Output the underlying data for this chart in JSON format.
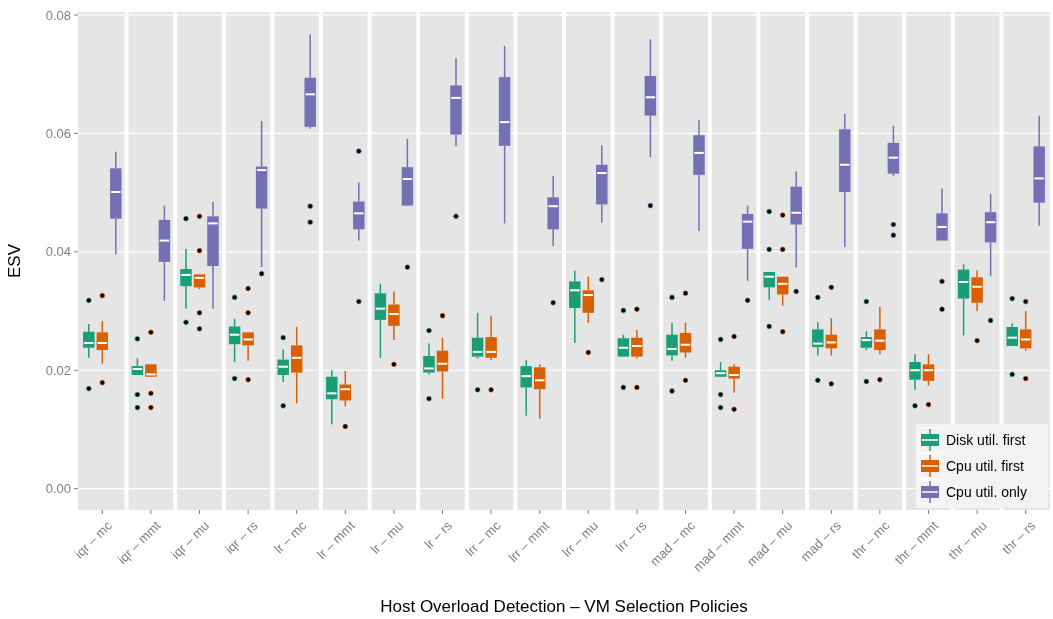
{
  "chart_data": {
    "type": "box",
    "xlabel": "Host Overload Detection – VM Selection Policies",
    "ylabel": "ESV",
    "categories": [
      "iqr – mc",
      "iqr – mmt",
      "iqr – mu",
      "iqr – rs",
      "lr – mc",
      "lr – mmt",
      "lr – mu",
      "lr – rs",
      "lrr – mc",
      "lrr – mmt",
      "lrr – mu",
      "lrr – rs",
      "mad – mc",
      "mad – mmt",
      "mad – mu",
      "mad – rs",
      "thr – mc",
      "thr – mmt",
      "thr – mu",
      "thr – rs"
    ],
    "ylim": [
      -0.0036,
      0.0805
    ],
    "yticks": [
      {
        "value": 0,
        "label": "0.00"
      },
      {
        "value": 0.02,
        "label": "0.02"
      },
      {
        "value": 0.04,
        "label": "0.04"
      },
      {
        "value": 0.06,
        "label": "0.06"
      },
      {
        "value": 0.08,
        "label": "0.08"
      }
    ],
    "grid": "y",
    "legend": "bottom right",
    "series": [
      {
        "name": "Disk util. first",
        "color": "#1b9e77",
        "boxes": [
          {
            "low": 0.0221,
            "q1": 0.0238,
            "median": 0.0246,
            "q3": 0.0265,
            "high": 0.0278,
            "outliers": [
              0.0318,
              0.0169
            ]
          },
          {
            "low": 0.0192,
            "q1": 0.0192,
            "median": 0.0202,
            "q3": 0.0207,
            "high": 0.022,
            "outliers": [
              0.0253,
              0.0159,
              0.0137
            ]
          },
          {
            "low": 0.0304,
            "q1": 0.0342,
            "median": 0.0361,
            "q3": 0.0371,
            "high": 0.0405,
            "outliers": [
              0.0456,
              0.0281
            ]
          },
          {
            "low": 0.0214,
            "q1": 0.0244,
            "median": 0.026,
            "q3": 0.0274,
            "high": 0.0287,
            "outliers": [
              0.0323,
              0.0186
            ]
          },
          {
            "low": 0.018,
            "q1": 0.0192,
            "median": 0.0206,
            "q3": 0.0218,
            "high": 0.0235,
            "outliers": [
              0.0255,
              0.014
            ]
          },
          {
            "low": 0.0109,
            "q1": 0.0151,
            "median": 0.0161,
            "q3": 0.0189,
            "high": 0.02
          },
          {
            "low": 0.0221,
            "q1": 0.0285,
            "median": 0.0304,
            "q3": 0.033,
            "high": 0.0346
          },
          {
            "low": 0.0193,
            "q1": 0.0196,
            "median": 0.0203,
            "q3": 0.0224,
            "high": 0.0245,
            "outliers": [
              0.0267,
              0.0152
            ]
          },
          {
            "low": 0.022,
            "q1": 0.0223,
            "median": 0.0231,
            "q3": 0.0255,
            "high": 0.0297,
            "outliers": [
              0.0167
            ]
          },
          {
            "low": 0.0123,
            "q1": 0.0171,
            "median": 0.019,
            "q3": 0.0207,
            "high": 0.0217
          },
          {
            "low": 0.0246,
            "q1": 0.0305,
            "median": 0.0335,
            "q3": 0.035,
            "high": 0.0368
          },
          {
            "low": 0.0223,
            "q1": 0.0223,
            "median": 0.0238,
            "q3": 0.0254,
            "high": 0.026,
            "outliers": [
              0.0301,
              0.0171
            ]
          },
          {
            "low": 0.0216,
            "q1": 0.0225,
            "median": 0.0236,
            "q3": 0.026,
            "high": 0.028,
            "outliers": [
              0.0323,
              0.0165
            ]
          },
          {
            "low": 0.0189,
            "q1": 0.0189,
            "median": 0.0195,
            "q3": 0.02,
            "high": 0.0214,
            "outliers": [
              0.0252,
              0.0159,
              0.0137
            ]
          },
          {
            "low": 0.0319,
            "q1": 0.034,
            "median": 0.0358,
            "q3": 0.0366,
            "high": 0.0366,
            "outliers": [
              0.0468,
              0.0404,
              0.0274
            ]
          },
          {
            "low": 0.0225,
            "q1": 0.0239,
            "median": 0.0245,
            "q3": 0.0269,
            "high": 0.0281,
            "outliers": [
              0.0323,
              0.0183
            ]
          },
          {
            "low": 0.0234,
            "q1": 0.0238,
            "median": 0.0251,
            "q3": 0.0256,
            "high": 0.0266,
            "outliers": [
              0.0316,
              0.0181
            ]
          },
          {
            "low": 0.0167,
            "q1": 0.0184,
            "median": 0.02,
            "q3": 0.0214,
            "high": 0.0227,
            "outliers": [
              0.014
            ]
          },
          {
            "low": 0.0259,
            "q1": 0.0321,
            "median": 0.0349,
            "q3": 0.037,
            "high": 0.0379
          },
          {
            "low": 0.0241,
            "q1": 0.0241,
            "median": 0.0255,
            "q3": 0.0273,
            "high": 0.0279,
            "outliers": [
              0.0321,
              0.0193
            ]
          }
        ]
      },
      {
        "name": "Cpu util. first",
        "color": "#d95f02",
        "boxes": [
          {
            "low": 0.0211,
            "q1": 0.0234,
            "median": 0.0246,
            "q3": 0.0264,
            "high": 0.0283,
            "outliers": [
              0.0326,
              0.0179
            ]
          },
          {
            "low": 0.0189,
            "q1": 0.0189,
            "median": 0.0193,
            "q3": 0.021,
            "high": 0.021,
            "outliers": [
              0.0264,
              0.0161,
              0.0137
            ]
          },
          {
            "low": 0.0337,
            "q1": 0.034,
            "median": 0.0356,
            "q3": 0.0362,
            "high": 0.0362,
            "outliers": [
              0.046,
              0.0402,
              0.0297,
              0.027
            ]
          },
          {
            "low": 0.0216,
            "q1": 0.0242,
            "median": 0.0252,
            "q3": 0.0264,
            "high": 0.0264,
            "outliers": [
              0.0338,
              0.0297,
              0.0184
            ]
          },
          {
            "low": 0.0144,
            "q1": 0.0196,
            "median": 0.0221,
            "q3": 0.0242,
            "high": 0.0273
          },
          {
            "low": 0.0139,
            "q1": 0.0149,
            "median": 0.0168,
            "q3": 0.0176,
            "high": 0.0199,
            "outliers": [
              0.0105
            ]
          },
          {
            "low": 0.0251,
            "q1": 0.0275,
            "median": 0.0295,
            "q3": 0.0311,
            "high": 0.0333,
            "outliers": [
              0.021
            ]
          },
          {
            "low": 0.0152,
            "q1": 0.0198,
            "median": 0.0211,
            "q3": 0.0233,
            "high": 0.0255,
            "outliers": [
              0.0292
            ]
          },
          {
            "low": 0.0217,
            "q1": 0.0221,
            "median": 0.0231,
            "q3": 0.0256,
            "high": 0.0292,
            "outliers": [
              0.0167
            ]
          },
          {
            "low": 0.0118,
            "q1": 0.0168,
            "median": 0.0183,
            "q3": 0.0205,
            "high": 0.021
          },
          {
            "low": 0.028,
            "q1": 0.0297,
            "median": 0.0327,
            "q3": 0.0335,
            "high": 0.0358,
            "outliers": [
              0.023
            ]
          },
          {
            "low": 0.022,
            "q1": 0.0223,
            "median": 0.0241,
            "q3": 0.0255,
            "high": 0.0268,
            "outliers": [
              0.0303,
              0.0171
            ]
          },
          {
            "low": 0.0221,
            "q1": 0.023,
            "median": 0.0243,
            "q3": 0.0263,
            "high": 0.028,
            "outliers": [
              0.033,
              0.0183
            ]
          },
          {
            "low": 0.0162,
            "q1": 0.0186,
            "median": 0.0192,
            "q3": 0.0206,
            "high": 0.021,
            "outliers": [
              0.0257,
              0.0134
            ]
          },
          {
            "low": 0.0309,
            "q1": 0.0328,
            "median": 0.0346,
            "q3": 0.0358,
            "high": 0.0358,
            "outliers": [
              0.0462,
              0.0404,
              0.0265
            ]
          },
          {
            "low": 0.0225,
            "q1": 0.0237,
            "median": 0.0247,
            "q3": 0.026,
            "high": 0.0288,
            "outliers": [
              0.034,
              0.0177
            ]
          },
          {
            "low": 0.0227,
            "q1": 0.0234,
            "median": 0.025,
            "q3": 0.0269,
            "high": 0.0307,
            "outliers": [
              0.0184
            ]
          },
          {
            "low": 0.0174,
            "q1": 0.0182,
            "median": 0.02,
            "q3": 0.021,
            "high": 0.0227,
            "outliers": [
              0.0142
            ]
          },
          {
            "low": 0.03,
            "q1": 0.0314,
            "median": 0.0341,
            "q3": 0.0357,
            "high": 0.0369,
            "outliers": [
              0.025
            ]
          },
          {
            "low": 0.0233,
            "q1": 0.0237,
            "median": 0.0252,
            "q3": 0.0269,
            "high": 0.03,
            "outliers": [
              0.0316,
              0.0186
            ]
          }
        ]
      },
      {
        "name": "Cpu util. only",
        "color": "#7570b3",
        "boxes": [
          {
            "low": 0.0396,
            "q1": 0.0456,
            "median": 0.0501,
            "q3": 0.0541,
            "high": 0.0569
          },
          {
            "low": 0.0317,
            "q1": 0.0383,
            "median": 0.0419,
            "q3": 0.0454,
            "high": 0.0478
          },
          {
            "low": 0.0304,
            "q1": 0.0376,
            "median": 0.0448,
            "q3": 0.046,
            "high": 0.0484
          },
          {
            "low": 0.0374,
            "q1": 0.0473,
            "median": 0.0538,
            "q3": 0.0544,
            "high": 0.0621,
            "outliers": [
              0.0363
            ]
          },
          {
            "low": 0.0608,
            "q1": 0.0611,
            "median": 0.0666,
            "q3": 0.0694,
            "high": 0.0767,
            "outliers": [
              0.0477,
              0.045
            ]
          },
          {
            "low": 0.0419,
            "q1": 0.0438,
            "median": 0.0465,
            "q3": 0.0485,
            "high": 0.0517,
            "outliers": [
              0.057,
              0.0316
            ]
          },
          {
            "low": 0.0478,
            "q1": 0.0478,
            "median": 0.0523,
            "q3": 0.0543,
            "high": 0.0591,
            "outliers": [
              0.0374
            ]
          },
          {
            "low": 0.0578,
            "q1": 0.0598,
            "median": 0.066,
            "q3": 0.0681,
            "high": 0.0727,
            "outliers": [
              0.046
            ]
          },
          {
            "low": 0.0448,
            "q1": 0.0579,
            "median": 0.0619,
            "q3": 0.0695,
            "high": 0.0748
          },
          {
            "low": 0.041,
            "q1": 0.0438,
            "median": 0.0477,
            "q3": 0.0492,
            "high": 0.0528,
            "outliers": [
              0.0314
            ]
          },
          {
            "low": 0.0449,
            "q1": 0.048,
            "median": 0.0533,
            "q3": 0.0547,
            "high": 0.058,
            "outliers": [
              0.0353
            ]
          },
          {
            "low": 0.056,
            "q1": 0.063,
            "median": 0.0661,
            "q3": 0.0697,
            "high": 0.0759,
            "outliers": [
              0.0478
            ]
          },
          {
            "low": 0.0435,
            "q1": 0.053,
            "median": 0.0567,
            "q3": 0.0597,
            "high": 0.0623
          },
          {
            "low": 0.0351,
            "q1": 0.0405,
            "median": 0.0451,
            "q3": 0.0464,
            "high": 0.0478,
            "outliers": [
              0.0318
            ]
          },
          {
            "low": 0.0374,
            "q1": 0.0446,
            "median": 0.0466,
            "q3": 0.051,
            "high": 0.0536,
            "outliers": [
              0.0333
            ]
          },
          {
            "low": 0.0408,
            "q1": 0.0501,
            "median": 0.0547,
            "q3": 0.0607,
            "high": 0.0633
          },
          {
            "low": 0.0528,
            "q1": 0.0532,
            "median": 0.0559,
            "q3": 0.0584,
            "high": 0.0613,
            "outliers": [
              0.0446,
              0.0428
            ]
          },
          {
            "low": 0.0419,
            "q1": 0.0419,
            "median": 0.0442,
            "q3": 0.0465,
            "high": 0.0507,
            "outliers": [
              0.035,
              0.0303
            ]
          },
          {
            "low": 0.0359,
            "q1": 0.0416,
            "median": 0.045,
            "q3": 0.0467,
            "high": 0.0498,
            "outliers": [
              0.0284
            ]
          },
          {
            "low": 0.0444,
            "q1": 0.0483,
            "median": 0.0524,
            "q3": 0.0578,
            "high": 0.063
          }
        ]
      }
    ]
  }
}
